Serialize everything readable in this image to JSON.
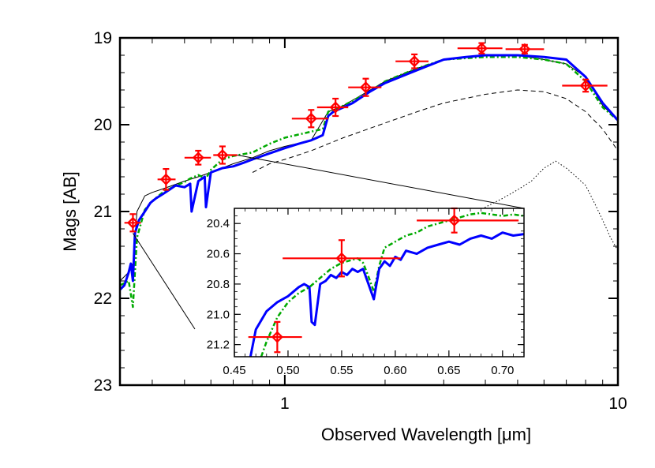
{
  "chart_data": [
    {
      "type": "line",
      "title": "",
      "xlabel": "Observed Wavelength [μm]",
      "ylabel": "Mags [AB]",
      "x_scale": "log",
      "xlim": [
        0.32,
        10
      ],
      "ylim": [
        23,
        19
      ],
      "y_inverted": true,
      "x_ticks": [
        1,
        10
      ],
      "x_tick_labels": [
        "1",
        "10"
      ],
      "y_ticks": [
        19,
        20,
        21,
        22,
        23
      ],
      "y_tick_labels": [
        "19",
        "20",
        "21",
        "22",
        "23"
      ],
      "grid": false,
      "legend": "none",
      "series": [
        {
          "style": "solid-thick",
          "color": "#0000ff",
          "x": [
            0.32,
            0.33,
            0.34,
            0.345,
            0.35,
            0.355,
            0.365,
            0.38,
            0.395,
            0.41,
            0.43,
            0.45,
            0.47,
            0.5,
            0.52,
            0.525,
            0.55,
            0.575,
            0.58,
            0.6,
            0.65,
            0.7,
            0.75,
            0.8,
            0.9,
            1.0,
            1.1,
            1.2,
            1.25,
            1.3,
            1.35,
            1.4,
            1.5,
            1.6,
            1.8,
            2.0,
            2.5,
            3.0,
            3.5,
            4.0,
            5.0,
            6.0,
            7.0,
            8.0,
            9.0,
            10.0
          ],
          "y": [
            21.9,
            21.85,
            21.7,
            21.6,
            21.8,
            21.25,
            21.1,
            21.0,
            20.9,
            20.85,
            20.8,
            20.75,
            20.7,
            20.72,
            20.68,
            21.0,
            20.65,
            20.6,
            20.95,
            20.55,
            20.5,
            20.48,
            20.44,
            20.4,
            20.33,
            20.27,
            20.22,
            20.18,
            20.15,
            20.12,
            19.9,
            19.85,
            19.8,
            19.75,
            19.62,
            19.52,
            19.37,
            19.25,
            19.22,
            19.2,
            19.2,
            19.22,
            19.25,
            19.45,
            19.75,
            19.95
          ]
        },
        {
          "style": "dash-dot",
          "color": "#00aa00",
          "x": [
            0.32,
            0.34,
            0.35,
            0.36,
            0.38,
            0.4,
            0.43,
            0.46,
            0.5,
            0.52,
            0.55,
            0.58,
            0.6,
            0.65,
            0.7,
            0.8,
            0.9,
            1.0,
            1.2,
            1.3,
            1.35,
            1.5,
            1.8,
            2.0,
            2.5,
            3.0,
            4.0,
            5.0,
            6.0,
            7.0,
            8.0,
            9.0,
            10.0
          ],
          "y": [
            21.85,
            21.8,
            22.1,
            21.3,
            20.98,
            20.88,
            20.78,
            20.72,
            20.66,
            20.62,
            20.58,
            20.62,
            20.52,
            20.4,
            20.36,
            20.32,
            20.22,
            20.15,
            20.08,
            20.05,
            19.85,
            19.78,
            19.62,
            19.5,
            19.35,
            19.25,
            19.22,
            19.22,
            19.25,
            19.3,
            19.5,
            19.8,
            19.95
          ]
        },
        {
          "style": "solid-thin",
          "color": "#000000",
          "x": [
            0.32,
            0.34,
            0.35,
            0.36,
            0.38,
            0.4,
            0.43,
            0.46,
            0.5,
            0.55,
            0.6,
            0.7,
            0.8,
            0.9,
            1.0,
            1.2,
            1.35,
            1.5,
            2.0,
            2.5,
            3.0,
            4.0,
            5.0,
            6.0,
            7.0,
            8.0,
            9.0,
            10.0
          ],
          "y": [
            21.8,
            21.7,
            21.6,
            21.0,
            20.82,
            20.78,
            20.74,
            20.7,
            20.65,
            20.6,
            20.55,
            20.45,
            20.38,
            20.3,
            20.25,
            20.18,
            19.85,
            19.78,
            19.5,
            19.35,
            19.25,
            19.2,
            19.2,
            19.25,
            19.3,
            19.45,
            19.78,
            19.95
          ]
        },
        {
          "style": "dashed",
          "color": "#000000",
          "x": [
            0.8,
            0.9,
            1.0,
            1.2,
            1.35,
            1.5,
            2.0,
            2.5,
            3.0,
            4.0,
            5.0,
            6.0,
            7.0,
            8.0,
            9.0,
            10.0
          ],
          "y": [
            20.55,
            20.45,
            20.4,
            20.3,
            20.22,
            20.15,
            19.98,
            19.85,
            19.75,
            19.65,
            19.6,
            19.62,
            19.7,
            19.85,
            20.05,
            20.3
          ]
        },
        {
          "style": "dotted",
          "color": "#000000",
          "x": [
            3.2,
            3.5,
            4.0,
            4.5,
            5.0,
            5.5,
            6.0,
            6.5,
            7.0,
            7.5,
            8.0,
            8.5,
            9.0,
            9.5,
            10.0
          ],
          "y": [
            21.3,
            21.1,
            20.95,
            20.85,
            20.75,
            20.65,
            20.5,
            20.42,
            20.5,
            20.6,
            20.7,
            20.9,
            21.1,
            21.3,
            21.45
          ]
        }
      ],
      "points": {
        "color": "#ff0000",
        "x": [
          0.35,
          0.44,
          0.55,
          0.65,
          1.2,
          1.42,
          1.75,
          2.45,
          3.9,
          5.25,
          8.0
        ],
        "x_err": [
          [
            0.33,
            0.37
          ],
          [
            0.415,
            0.47
          ],
          [
            0.5,
            0.6
          ],
          [
            0.61,
            0.72
          ],
          [
            1.05,
            1.35
          ],
          [
            1.25,
            1.55
          ],
          [
            1.55,
            1.95
          ],
          [
            2.15,
            2.7
          ],
          [
            3.3,
            4.5
          ],
          [
            4.6,
            6.0
          ],
          [
            6.8,
            9.3
          ]
        ],
        "y": [
          21.13,
          20.63,
          20.38,
          20.35,
          19.93,
          19.8,
          19.57,
          19.27,
          19.12,
          19.13,
          19.55
        ],
        "y_err": [
          0.1,
          0.12,
          0.08,
          0.1,
          0.1,
          0.1,
          0.1,
          0.08,
          0.06,
          0.05,
          0.07
        ]
      }
    },
    {
      "type": "line",
      "title": "",
      "xlabel": "",
      "ylabel": "",
      "xlim": [
        0.45,
        0.72
      ],
      "ylim": [
        21.28,
        20.3
      ],
      "y_inverted": true,
      "x_ticks": [
        0.45,
        0.5,
        0.55,
        0.6,
        0.65,
        0.7
      ],
      "x_tick_labels": [
        "0.45",
        "0.50",
        "0.55",
        "0.60",
        "0.65",
        "0.70"
      ],
      "y_ticks": [
        20.4,
        20.6,
        20.8,
        21.0,
        21.2
      ],
      "y_tick_labels": [
        "20.4",
        "20.6",
        "20.8",
        "21.0",
        "21.2"
      ],
      "grid": false,
      "legend": "none",
      "series": [
        {
          "style": "solid-thick",
          "color": "#0000ff",
          "x": [
            0.465,
            0.47,
            0.48,
            0.49,
            0.5,
            0.51,
            0.515,
            0.52,
            0.522,
            0.525,
            0.53,
            0.535,
            0.54,
            0.545,
            0.55,
            0.555,
            0.56,
            0.565,
            0.57,
            0.575,
            0.58,
            0.585,
            0.59,
            0.595,
            0.6,
            0.605,
            0.61,
            0.62,
            0.63,
            0.64,
            0.65,
            0.66,
            0.67,
            0.68,
            0.69,
            0.7,
            0.71,
            0.72
          ],
          "y": [
            21.28,
            21.1,
            20.98,
            20.92,
            20.88,
            20.82,
            20.8,
            20.82,
            21.05,
            21.07,
            20.8,
            20.78,
            20.74,
            20.76,
            20.72,
            20.74,
            20.7,
            20.72,
            20.7,
            20.8,
            20.9,
            20.7,
            20.65,
            20.68,
            20.62,
            20.64,
            20.58,
            20.6,
            20.56,
            20.54,
            20.52,
            20.54,
            20.5,
            20.48,
            20.5,
            20.46,
            20.48,
            20.47
          ]
        },
        {
          "style": "dash-dot",
          "color": "#00aa00",
          "x": [
            0.475,
            0.48,
            0.49,
            0.5,
            0.51,
            0.52,
            0.53,
            0.54,
            0.55,
            0.56,
            0.565,
            0.57,
            0.575,
            0.58,
            0.585,
            0.59,
            0.6,
            0.61,
            0.62,
            0.63,
            0.64,
            0.65,
            0.66,
            0.67,
            0.68,
            0.69,
            0.7,
            0.71,
            0.72
          ],
          "y": [
            21.28,
            21.18,
            21.02,
            20.92,
            20.86,
            20.82,
            20.76,
            20.7,
            20.66,
            20.64,
            20.63,
            20.66,
            20.75,
            20.85,
            20.68,
            20.56,
            20.52,
            20.48,
            20.46,
            20.42,
            20.4,
            20.38,
            20.36,
            20.34,
            20.33,
            20.34,
            20.35,
            20.34,
            20.35
          ]
        }
      ],
      "points": {
        "color": "#ff0000",
        "x": [
          0.49,
          0.55,
          0.655
        ],
        "x_err": [
          [
            0.463,
            0.513
          ],
          [
            0.495,
            0.605
          ],
          [
            0.62,
            0.715
          ]
        ],
        "y": [
          21.15,
          20.63,
          20.38
        ],
        "y_err": [
          0.1,
          0.12,
          0.08
        ]
      }
    }
  ]
}
